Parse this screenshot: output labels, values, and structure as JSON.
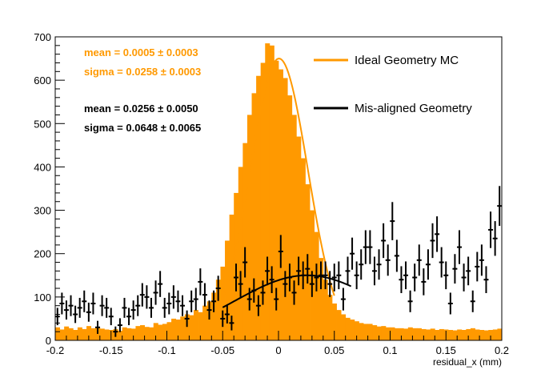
{
  "chart_data": {
    "type": "histogram",
    "xlabel": "residual_x (mm)",
    "ylabel": "",
    "xlim": [
      -0.2,
      0.2
    ],
    "ylim": [
      0,
      700
    ],
    "x_ticks": [
      "-0.2",
      "-0.15",
      "-0.1",
      "-0.05",
      "0",
      "0.05",
      "0.1",
      "0.15",
      "0.2"
    ],
    "x_tick_values": [
      -0.2,
      -0.15,
      -0.1,
      -0.05,
      0,
      0.05,
      0.1,
      0.15,
      0.2
    ],
    "y_ticks": [
      "0",
      "100",
      "200",
      "300",
      "400",
      "500",
      "600",
      "700"
    ],
    "y_tick_values": [
      0,
      100,
      200,
      300,
      400,
      500,
      600,
      700
    ],
    "colors": {
      "ideal": "#ff9900",
      "misaligned": "#000000"
    },
    "stats": [
      {
        "mean": "mean = 0.0005 ± 0.0003",
        "sigma": "sigma = 0.0258 ± 0.0003",
        "color": "#ff9900"
      },
      {
        "mean": "mean = 0.0256 ± 0.0050",
        "sigma": "sigma = 0.0648 ± 0.0065",
        "color": "#000000"
      }
    ],
    "legend": [
      {
        "label": "Ideal Geometry MC",
        "color": "#ff9900"
      },
      {
        "label": "Mis-aligned Geometry",
        "color": "#000000"
      }
    ],
    "series": [
      {
        "name": "Ideal Geometry MC",
        "kind": "filled-histogram",
        "bin_width": 0.004,
        "fit": {
          "mean": 0.0005,
          "sigma": 0.0258,
          "amplitude": 650,
          "range": [
            -0.05,
            0.05
          ]
        },
        "x": [
          -0.198,
          -0.194,
          -0.19,
          -0.186,
          -0.182,
          -0.178,
          -0.174,
          -0.17,
          -0.166,
          -0.162,
          -0.158,
          -0.154,
          -0.15,
          -0.146,
          -0.142,
          -0.138,
          -0.134,
          -0.13,
          -0.126,
          -0.122,
          -0.118,
          -0.114,
          -0.11,
          -0.106,
          -0.102,
          -0.098,
          -0.094,
          -0.09,
          -0.086,
          -0.082,
          -0.078,
          -0.074,
          -0.07,
          -0.066,
          -0.062,
          -0.058,
          -0.054,
          -0.05,
          -0.046,
          -0.042,
          -0.038,
          -0.034,
          -0.03,
          -0.026,
          -0.022,
          -0.018,
          -0.014,
          -0.01,
          -0.006,
          -0.002,
          0.002,
          0.006,
          0.01,
          0.014,
          0.018,
          0.022,
          0.026,
          0.03,
          0.034,
          0.038,
          0.042,
          0.046,
          0.05,
          0.054,
          0.058,
          0.062,
          0.066,
          0.07,
          0.074,
          0.078,
          0.082,
          0.086,
          0.09,
          0.094,
          0.098,
          0.102,
          0.106,
          0.11,
          0.114,
          0.118,
          0.122,
          0.126,
          0.13,
          0.134,
          0.138,
          0.142,
          0.146,
          0.15,
          0.154,
          0.158,
          0.162,
          0.166,
          0.17,
          0.174,
          0.178,
          0.182,
          0.186,
          0.19,
          0.194,
          0.198
        ],
        "values": [
          30,
          25,
          32,
          28,
          24,
          30,
          26,
          33,
          28,
          30,
          27,
          25,
          24,
          26,
          22,
          30,
          28,
          27,
          33,
          35,
          31,
          30,
          40,
          36,
          38,
          42,
          50,
          48,
          55,
          60,
          58,
          70,
          65,
          80,
          90,
          110,
          140,
          170,
          230,
          290,
          340,
          400,
          455,
          520,
          570,
          610,
          640,
          685,
          680,
          645,
          625,
          605,
          565,
          520,
          470,
          420,
          360,
          300,
          250,
          190,
          140,
          105,
          85,
          70,
          60,
          52,
          48,
          44,
          40,
          38,
          38,
          35,
          32,
          33,
          30,
          30,
          28,
          28,
          27,
          30,
          28,
          28,
          26,
          25,
          27,
          24,
          26,
          25,
          24,
          23,
          25,
          24,
          26,
          28,
          25,
          24,
          23,
          24,
          25,
          27
        ]
      },
      {
        "name": "Mis-aligned Geometry",
        "kind": "points-with-errors",
        "x": [
          -0.198,
          -0.194,
          -0.19,
          -0.186,
          -0.182,
          -0.178,
          -0.174,
          -0.17,
          -0.166,
          -0.162,
          -0.158,
          -0.154,
          -0.15,
          -0.146,
          -0.142,
          -0.138,
          -0.134,
          -0.13,
          -0.126,
          -0.122,
          -0.118,
          -0.114,
          -0.11,
          -0.106,
          -0.102,
          -0.098,
          -0.094,
          -0.09,
          -0.086,
          -0.082,
          -0.078,
          -0.074,
          -0.07,
          -0.066,
          -0.062,
          -0.058,
          -0.054,
          -0.05,
          -0.046,
          -0.042,
          -0.038,
          -0.034,
          -0.03,
          -0.026,
          -0.022,
          -0.018,
          -0.014,
          -0.01,
          -0.006,
          -0.002,
          0.002,
          0.006,
          0.01,
          0.014,
          0.018,
          0.022,
          0.026,
          0.03,
          0.034,
          0.038,
          0.042,
          0.046,
          0.05,
          0.054,
          0.058,
          0.062,
          0.066,
          0.07,
          0.074,
          0.078,
          0.082,
          0.086,
          0.09,
          0.094,
          0.098,
          0.102,
          0.106,
          0.11,
          0.114,
          0.118,
          0.122,
          0.126,
          0.13,
          0.134,
          0.138,
          0.142,
          0.146,
          0.15,
          0.154,
          0.158,
          0.162,
          0.166,
          0.17,
          0.174,
          0.178,
          0.182,
          0.186,
          0.19,
          0.194,
          0.198
        ],
        "values": [
          55,
          85,
          70,
          80,
          60,
          75,
          90,
          65,
          85,
          30,
          80,
          75,
          55,
          20,
          35,
          75,
          55,
          70,
          80,
          105,
          100,
          75,
          110,
          130,
          75,
          85,
          100,
          90,
          80,
          50,
          90,
          95,
          135,
          105,
          70,
          90,
          120,
          50,
          60,
          40,
          145,
          130,
          180,
          95,
          115,
          80,
          110,
          160,
          140,
          95,
          205,
          130,
          145,
          110,
          160,
          150,
          165,
          130,
          145,
          150,
          150,
          130,
          145,
          150,
          95,
          160,
          200,
          150,
          175,
          215,
          215,
          160,
          175,
          230,
          185,
          275,
          195,
          140,
          150,
          90,
          145,
          185,
          135,
          175,
          230,
          245,
          180,
          150,
          85,
          165,
          215,
          145,
          160,
          90,
          170,
          185,
          140,
          255,
          235,
          310
        ],
        "errors": [
          20,
          25,
          22,
          24,
          20,
          23,
          25,
          22,
          25,
          15,
          24,
          23,
          20,
          12,
          16,
          23,
          20,
          22,
          24,
          27,
          27,
          23,
          28,
          30,
          23,
          25,
          27,
          25,
          24,
          19,
          25,
          26,
          31,
          27,
          22,
          25,
          29,
          19,
          21,
          17,
          32,
          30,
          35,
          26,
          28,
          24,
          28,
          33,
          31,
          26,
          38,
          30,
          32,
          28,
          33,
          32,
          34,
          30,
          32,
          32,
          32,
          30,
          32,
          32,
          26,
          33,
          37,
          32,
          35,
          39,
          39,
          33,
          35,
          40,
          36,
          44,
          37,
          31,
          32,
          25,
          32,
          36,
          31,
          35,
          40,
          41,
          35,
          32,
          25,
          34,
          39,
          32,
          33,
          25,
          34,
          36,
          31,
          42,
          40,
          46
        ],
        "fit": {
          "mean": 0.0256,
          "sigma": 0.0648,
          "amplitude": 150,
          "range": [
            -0.05,
            0.065
          ]
        }
      }
    ]
  }
}
